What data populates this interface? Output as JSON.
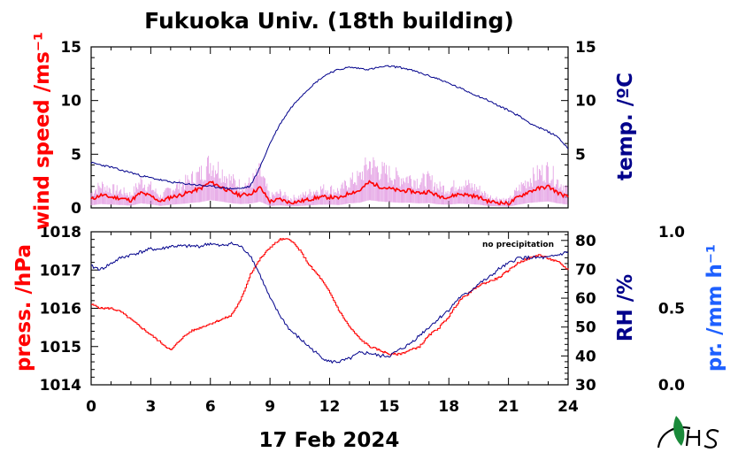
{
  "title": "Fukuoka Univ. (18th building)",
  "date_label": "17 Feb 2024",
  "colors": {
    "wind": "#ff0000",
    "wind_gust": "#dd88dd",
    "temp": "#00008b",
    "pressure": "#ff0000",
    "rh": "#00008b",
    "precip": "#1e60ff",
    "axis": "#000000"
  },
  "chart_data": [
    {
      "type": "line",
      "panel": "top",
      "ylabel_left": "wind speed /ms⁻¹",
      "ylabel_right": "temp. /ºC",
      "xlim": [
        0,
        24
      ],
      "ylim_left": [
        0,
        15
      ],
      "ylim_right": [
        0,
        15
      ],
      "x_ticks": [
        0,
        3,
        6,
        9,
        12,
        15,
        18,
        21,
        24
      ],
      "y_ticks_left": [
        0,
        5,
        10,
        15
      ],
      "y_ticks_right": [
        5,
        10,
        15
      ],
      "series": [
        {
          "name": "wind speed",
          "axis": "left",
          "x": [
            0,
            0.5,
            1,
            1.5,
            2,
            2.5,
            3,
            3.5,
            4,
            4.5,
            5,
            5.5,
            6,
            6.5,
            7,
            7.5,
            8,
            8.5,
            9,
            9.5,
            10,
            10.5,
            11,
            11.5,
            12,
            12.5,
            13,
            13.5,
            14,
            14.5,
            15,
            15.5,
            16,
            16.5,
            17,
            17.5,
            18,
            18.5,
            19,
            19.5,
            20,
            20.5,
            21,
            21.5,
            22,
            22.5,
            23,
            23.5,
            24
          ],
          "values": [
            0.8,
            1.2,
            1.0,
            0.9,
            0.7,
            1.4,
            1.1,
            0.6,
            1.0,
            1.2,
            1.5,
            1.8,
            2.4,
            2.0,
            1.5,
            1.2,
            1.3,
            1.9,
            0.6,
            0.8,
            0.5,
            0.6,
            0.8,
            1.0,
            1.0,
            0.9,
            1.4,
            1.6,
            2.4,
            2.0,
            1.8,
            1.6,
            1.6,
            1.4,
            1.5,
            1.1,
            1.0,
            1.3,
            1.2,
            1.0,
            0.6,
            0.5,
            0.4,
            1.0,
            1.5,
            1.8,
            2.0,
            1.4,
            1.0
          ]
        },
        {
          "name": "temperature",
          "axis": "right",
          "x": [
            0,
            0.5,
            1,
            1.5,
            2,
            2.5,
            3,
            3.5,
            4,
            4.5,
            5,
            5.5,
            6,
            6.5,
            7,
            7.5,
            8,
            8.5,
            9,
            9.5,
            10,
            10.5,
            11,
            11.5,
            12,
            12.5,
            13,
            13.5,
            14,
            14.5,
            15,
            15.5,
            16,
            16.5,
            17,
            17.5,
            18,
            18.5,
            19,
            19.5,
            20,
            20.5,
            21,
            21.5,
            22,
            22.5,
            23,
            23.5,
            24
          ],
          "values": [
            4.2,
            4.0,
            3.8,
            3.5,
            3.3,
            3.0,
            2.8,
            2.6,
            2.4,
            2.3,
            2.2,
            2.1,
            2.0,
            1.9,
            1.8,
            1.8,
            2.0,
            3.8,
            6.0,
            7.8,
            9.2,
            10.3,
            11.2,
            12.0,
            12.6,
            12.9,
            13.1,
            13.0,
            12.9,
            13.1,
            13.2,
            13.1,
            12.9,
            12.6,
            12.3,
            12.0,
            11.6,
            11.2,
            10.8,
            10.4,
            10.0,
            9.5,
            9.1,
            8.6,
            8.0,
            7.5,
            7.1,
            6.6,
            5.5
          ]
        }
      ]
    },
    {
      "type": "line",
      "panel": "bottom",
      "ylabel_left": "press. /hPa",
      "ylabel_right": "RH /%",
      "ylabel_far_right": "pr. /mm h⁻¹",
      "annotation": "no precipitation",
      "xlim": [
        0,
        24
      ],
      "ylim_left": [
        1014,
        1018
      ],
      "ylim_right": [
        30,
        83
      ],
      "ylim_far_right": [
        0,
        1
      ],
      "x_ticks": [
        0,
        3,
        6,
        9,
        12,
        15,
        18,
        21,
        24
      ],
      "y_ticks_left": [
        1014,
        1015,
        1016,
        1017,
        1018
      ],
      "y_ticks_right": [
        30,
        40,
        50,
        60,
        70,
        80
      ],
      "y_ticks_far_right": [
        "0.0",
        "0.5",
        "1.0"
      ],
      "series": [
        {
          "name": "pressure",
          "axis": "left",
          "x": [
            0,
            0.5,
            1,
            1.5,
            2,
            2.5,
            3,
            3.5,
            4,
            4.5,
            5,
            5.5,
            6,
            6.5,
            7,
            7.5,
            8,
            8.5,
            9,
            9.5,
            10,
            10.5,
            11,
            11.5,
            12,
            12.5,
            13,
            13.5,
            14,
            14.5,
            15,
            15.5,
            16,
            16.5,
            17,
            17.5,
            18,
            18.5,
            19,
            19.5,
            20,
            20.5,
            21,
            21.5,
            22,
            22.5,
            23,
            23.5,
            24
          ],
          "values": [
            1016.1,
            1016.0,
            1016.0,
            1015.9,
            1015.7,
            1015.5,
            1015.3,
            1015.1,
            1014.9,
            1015.2,
            1015.4,
            1015.5,
            1015.6,
            1015.7,
            1015.8,
            1016.2,
            1016.9,
            1017.3,
            1017.6,
            1017.8,
            1017.8,
            1017.5,
            1017.1,
            1016.8,
            1016.4,
            1015.9,
            1015.5,
            1015.2,
            1015.0,
            1014.9,
            1014.8,
            1014.8,
            1014.9,
            1015.0,
            1015.3,
            1015.5,
            1015.8,
            1016.2,
            1016.4,
            1016.6,
            1016.7,
            1016.8,
            1017.0,
            1017.2,
            1017.3,
            1017.4,
            1017.3,
            1017.2,
            1017.0
          ]
        },
        {
          "name": "relative humidity",
          "axis": "right",
          "x": [
            0,
            0.5,
            1,
            1.5,
            2,
            2.5,
            3,
            3.5,
            4,
            4.5,
            5,
            5.5,
            6,
            6.5,
            7,
            7.5,
            8,
            8.5,
            9,
            9.5,
            10,
            10.5,
            11,
            11.5,
            12,
            12.5,
            13,
            13.5,
            14,
            14.5,
            15,
            15.5,
            16,
            16.5,
            17,
            17.5,
            18,
            18.5,
            19,
            19.5,
            20,
            20.5,
            21,
            21.5,
            22,
            22.5,
            23,
            23.5,
            24
          ],
          "values": [
            71,
            70,
            72,
            74,
            75,
            76,
            77,
            77,
            78,
            78,
            78,
            78,
            79,
            78,
            79,
            78,
            75,
            68,
            60,
            54,
            49,
            46,
            43,
            40,
            38,
            38,
            39,
            41,
            41,
            40,
            40,
            42,
            44,
            47,
            50,
            53,
            56,
            60,
            62,
            65,
            67,
            70,
            72,
            74,
            74,
            74,
            74,
            75,
            76
          ]
        }
      ]
    }
  ]
}
